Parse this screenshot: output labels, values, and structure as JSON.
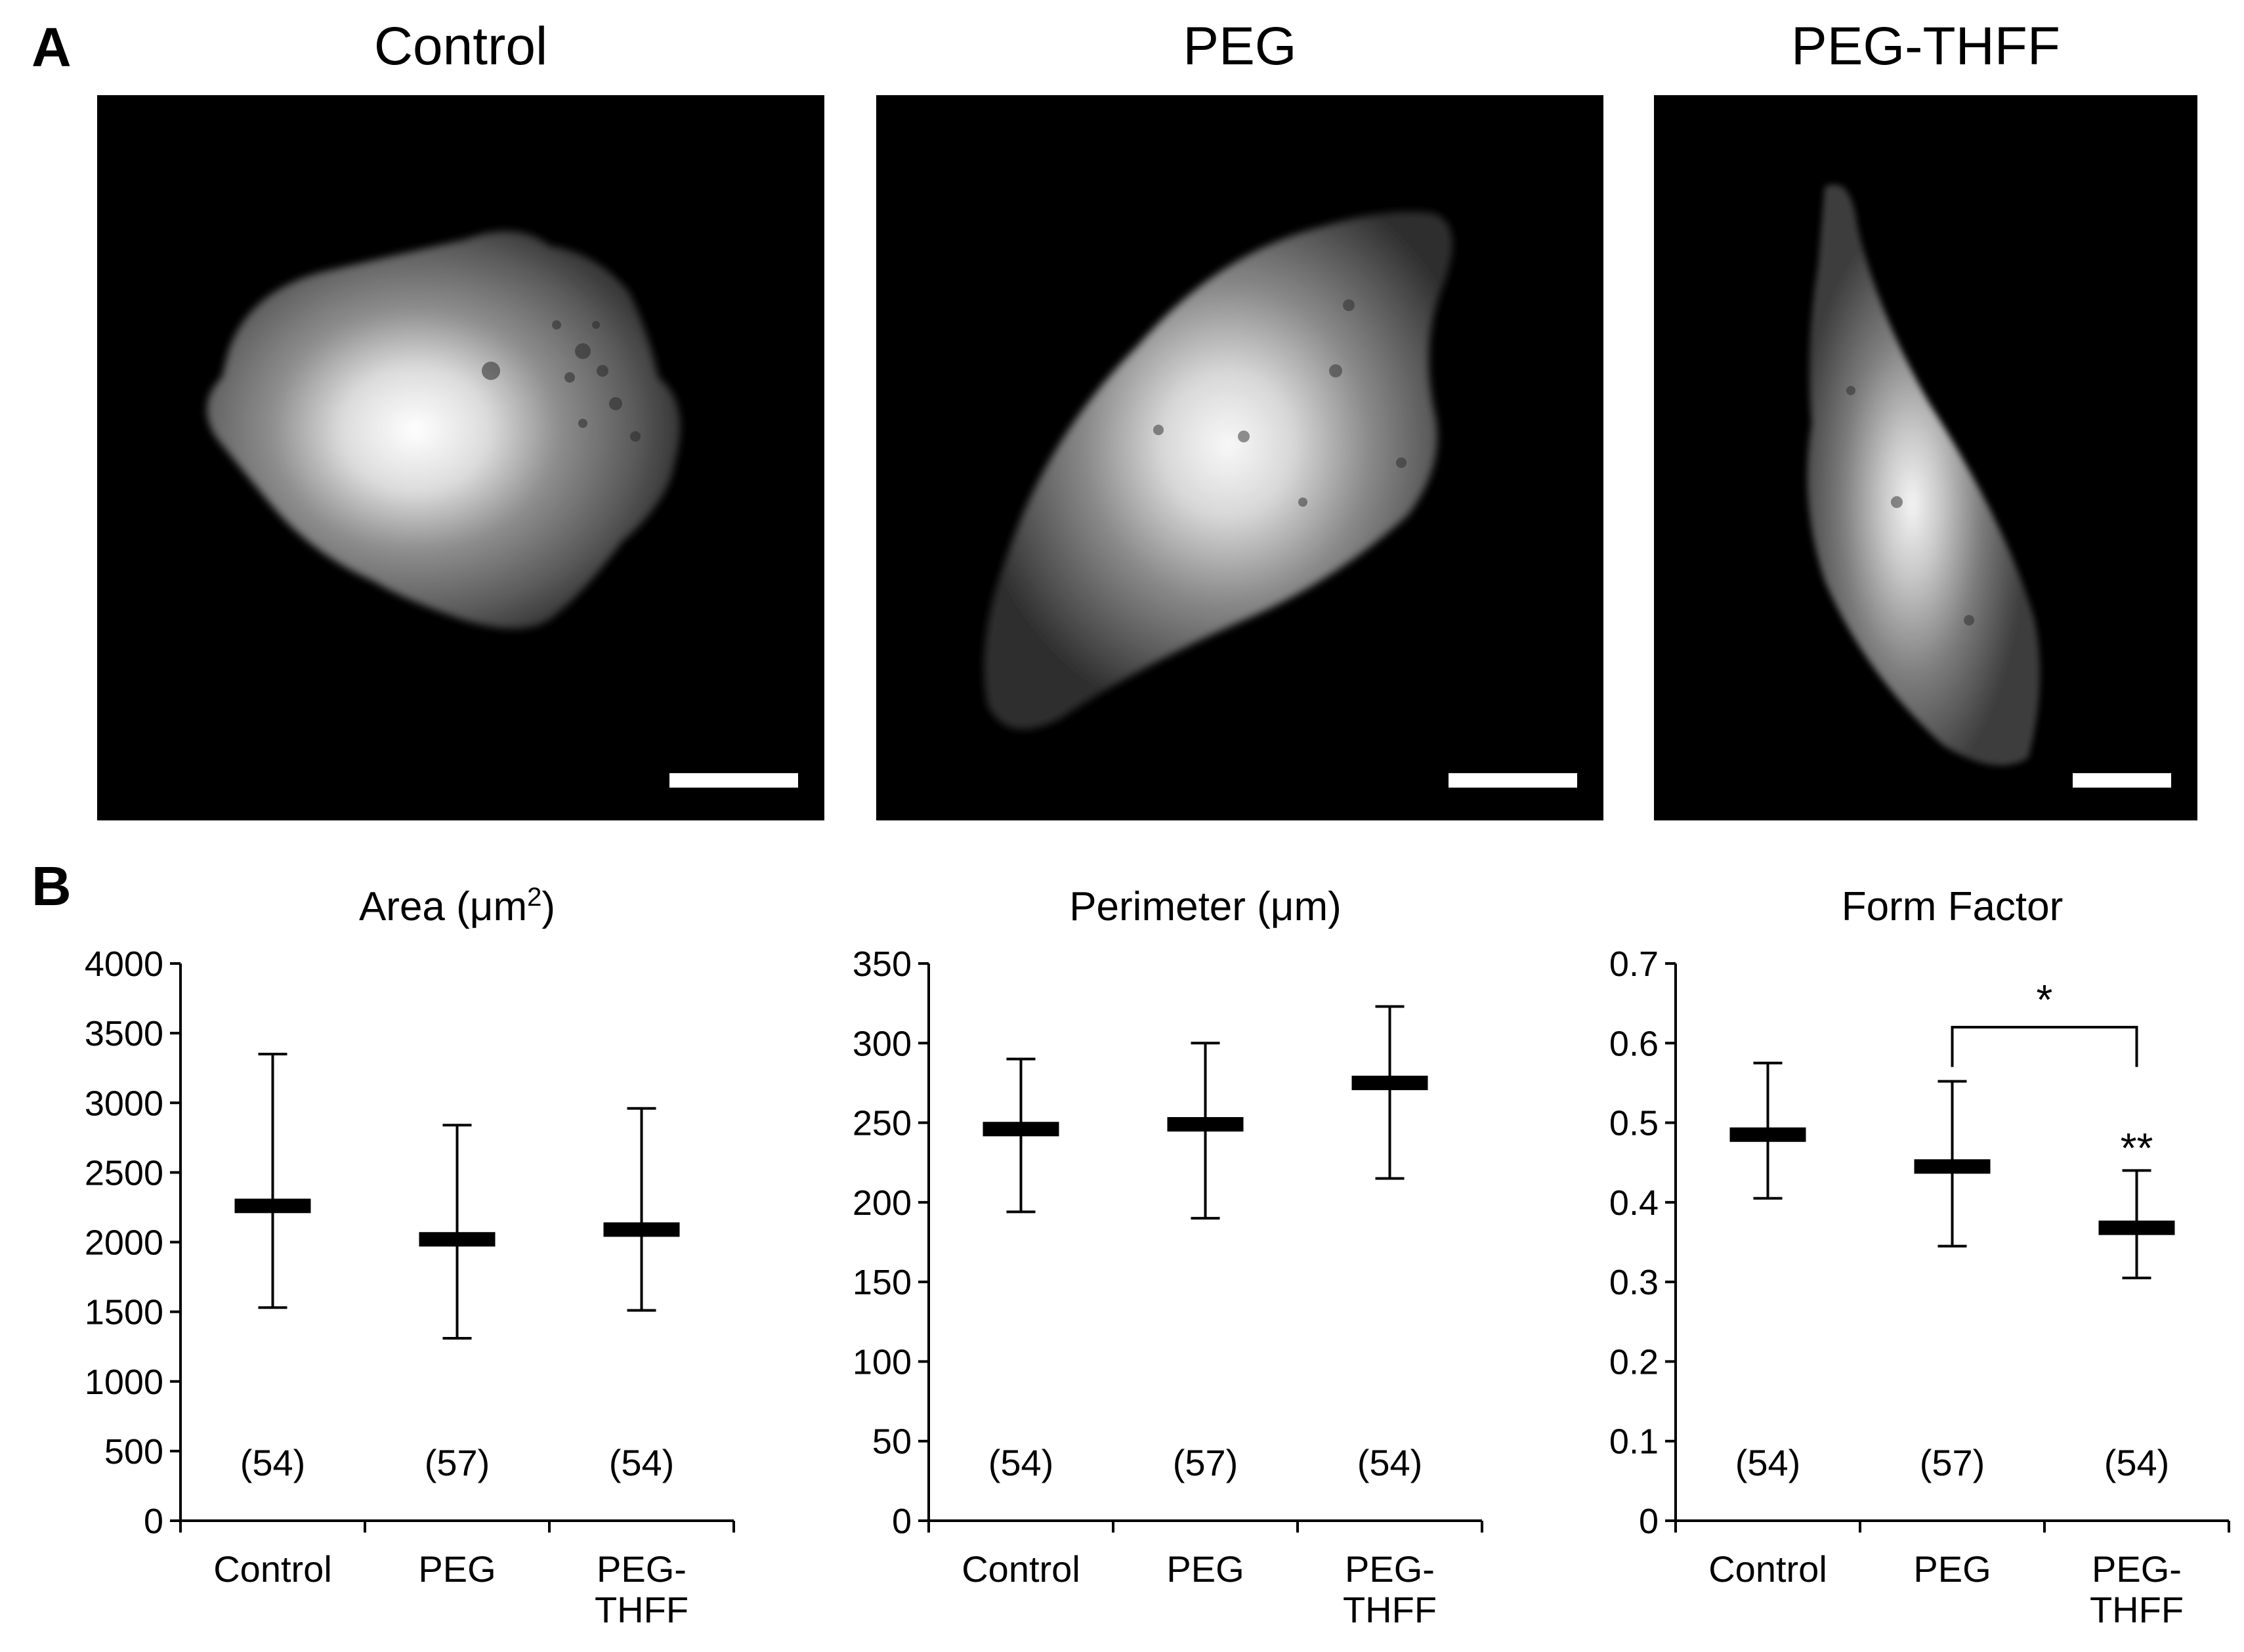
{
  "panel_a": {
    "letter": "A",
    "images": [
      {
        "title": "Control",
        "icon": "cell-micrograph-control-icon"
      },
      {
        "title": "PEG",
        "icon": "cell-micrograph-peg-icon"
      },
      {
        "title": "PEG-THFF",
        "icon": "cell-micrograph-peg-thff-icon"
      }
    ]
  },
  "panel_b": {
    "letter": "B"
  },
  "chart_data": [
    {
      "type": "errorbar",
      "title": "Area (μm²)",
      "title_main": "Area (μm",
      "title_sup": "2",
      "title_end": ")",
      "categories": [
        [
          "Control"
        ],
        [
          "PEG"
        ],
        [
          "PEG-",
          "THFF"
        ]
      ],
      "ylim": [
        0,
        4000
      ],
      "yticks": [
        0,
        500,
        1000,
        1500,
        2000,
        2500,
        3000,
        3500,
        4000
      ],
      "ytick_labels": [
        "0",
        "500",
        "1000",
        "1500",
        "2000",
        "2500",
        "3000",
        "3500",
        "4000"
      ],
      "series": [
        {
          "mean": 2260,
          "upper": 3350,
          "lower": 1530,
          "n_label": "(54)"
        },
        {
          "mean": 2020,
          "upper": 2840,
          "lower": 1310,
          "n_label": "(57)"
        },
        {
          "mean": 2090,
          "upper": 2960,
          "lower": 1510,
          "n_label": "(54)"
        }
      ],
      "annotations": []
    },
    {
      "type": "errorbar",
      "title": "Perimeter (μm)",
      "title_main": "Perimeter (μm)",
      "title_sup": "",
      "title_end": "",
      "categories": [
        [
          "Control"
        ],
        [
          "PEG"
        ],
        [
          "PEG-",
          "THFF"
        ]
      ],
      "ylim": [
        0,
        350
      ],
      "yticks": [
        0,
        50,
        100,
        150,
        200,
        250,
        300,
        350
      ],
      "ytick_labels": [
        "0",
        "50",
        "100",
        "150",
        "200",
        "250",
        "300",
        "350"
      ],
      "series": [
        {
          "mean": 246,
          "upper": 290,
          "lower": 194,
          "n_label": "(54)"
        },
        {
          "mean": 249,
          "upper": 300,
          "lower": 190,
          "n_label": "(57)"
        },
        {
          "mean": 275,
          "upper": 323,
          "lower": 215,
          "n_label": "(54)"
        }
      ],
      "annotations": []
    },
    {
      "type": "errorbar",
      "title": "Form Factor",
      "title_main": "Form Factor",
      "title_sup": "",
      "title_end": "",
      "categories": [
        [
          "Control"
        ],
        [
          "PEG"
        ],
        [
          "PEG-",
          "THFF"
        ]
      ],
      "ylim": [
        0,
        0.7
      ],
      "yticks": [
        0,
        0.1,
        0.2,
        0.3,
        0.4,
        0.5,
        0.6,
        0.7
      ],
      "ytick_labels": [
        "0",
        "0.1",
        "0.2",
        "0.3",
        "0.4",
        "0.5",
        "0.6",
        "0.7"
      ],
      "series": [
        {
          "mean": 0.485,
          "upper": 0.575,
          "lower": 0.405,
          "n_label": "(54)"
        },
        {
          "mean": 0.445,
          "upper": 0.552,
          "lower": 0.345,
          "n_label": "(57)"
        },
        {
          "mean": 0.368,
          "upper": 0.44,
          "lower": 0.305,
          "n_label": "(54)"
        }
      ],
      "annotations": [
        {
          "kind": "bracket",
          "from": 1,
          "to": 2,
          "y": 0.62,
          "drop_to": 0.57,
          "label": "*"
        },
        {
          "kind": "star",
          "at": 2,
          "y": 0.47,
          "label": "**"
        }
      ]
    }
  ]
}
